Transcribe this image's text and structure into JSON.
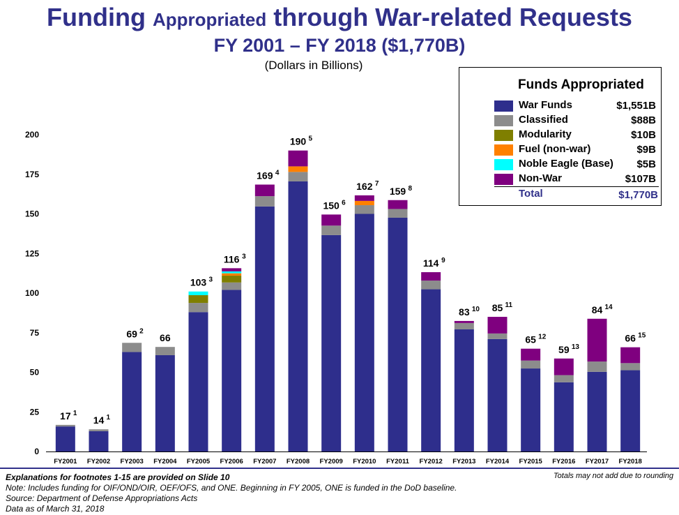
{
  "title": {
    "line1_a": "Funding",
    "line1_b": "Appropriated",
    "line1_c": "through War-related Requests",
    "line2": "FY 2001 – FY 2018 ($1,770B)",
    "units": "(Dollars in Billions)"
  },
  "legend": {
    "title": "Funds Appropriated",
    "items": [
      {
        "label": "War Funds",
        "value": "$1,551B",
        "color": "#2e2e8c"
      },
      {
        "label": "Classified",
        "value": "$88B",
        "color": "#8c8c8c"
      },
      {
        "label": "Modularity",
        "value": "$10B",
        "color": "#7f7f00"
      },
      {
        "label": "Fuel (non-war)",
        "value": "$9B",
        "color": "#ff8000"
      },
      {
        "label": "Noble Eagle (Base)",
        "value": "$5B",
        "color": "#00ffff"
      },
      {
        "label": "Non-War",
        "value": "$107B",
        "color": "#7f007f"
      }
    ],
    "total_label": "Total",
    "total_value": "$1,770B"
  },
  "chart_data": {
    "type": "bar",
    "stacked": true,
    "ylim": [
      0,
      200
    ],
    "yticks": [
      0,
      25,
      50,
      75,
      100,
      125,
      150,
      175,
      200
    ],
    "categories": [
      "FY2001",
      "FY2002",
      "FY2003",
      "FY2004",
      "FY2005",
      "FY2006",
      "FY2007",
      "FY2008",
      "FY2009",
      "FY2010",
      "FY2011",
      "FY2012",
      "FY2013",
      "FY2014",
      "FY2015",
      "FY2016",
      "FY2017",
      "FY2018"
    ],
    "totals": [
      "17",
      "14",
      "69",
      "66",
      "103",
      "116",
      "169",
      "190",
      "150",
      "162",
      "159",
      "114",
      "83",
      "85",
      "65",
      "59",
      "84",
      "66"
    ],
    "footnotes": [
      "1",
      "1",
      "2",
      "",
      "3",
      "3",
      "4",
      "5",
      "6",
      "7",
      "8",
      "9",
      "10",
      "11",
      "12",
      "13",
      "14",
      "15"
    ],
    "series": [
      {
        "name": "War Funds",
        "color": "#2e2e8c",
        "values": [
          15.8,
          12.8,
          62.8,
          60.8,
          88.0,
          102.0,
          154.7,
          170.5,
          136.6,
          150.0,
          147.6,
          102.4,
          77.1,
          71.0,
          52.4,
          43.7,
          50.3,
          51.3
        ]
      },
      {
        "name": "Classified",
        "color": "#8c8c8c",
        "values": [
          1.0,
          1.2,
          5.8,
          5.2,
          5.8,
          4.7,
          6.5,
          6.0,
          6.0,
          5.5,
          5.5,
          5.5,
          4.0,
          3.5,
          5.0,
          4.5,
          6.5,
          4.5
        ]
      },
      {
        "name": "Modularity",
        "color": "#7f7f00",
        "values": [
          0,
          0,
          0,
          0,
          4.9,
          4.3,
          0,
          0,
          0,
          0,
          0,
          0,
          0,
          0,
          0,
          0,
          0,
          0
        ]
      },
      {
        "name": "Fuel (non-war)",
        "color": "#ff8000",
        "values": [
          0,
          0,
          0,
          0,
          0,
          1.5,
          0,
          3.5,
          0,
          2.7,
          0,
          0,
          0,
          0,
          0,
          0,
          0,
          0
        ]
      },
      {
        "name": "Noble Eagle (Base)",
        "color": "#00ffff",
        "values": [
          0,
          0,
          0,
          0,
          2.3,
          1.2,
          0,
          0,
          0,
          0,
          0,
          0,
          0,
          0,
          0,
          0,
          0,
          0
        ]
      },
      {
        "name": "Non-War",
        "color": "#7f007f",
        "values": [
          0,
          0,
          0,
          0,
          0,
          2.0,
          7.3,
          10.0,
          7.0,
          3.5,
          5.6,
          5.3,
          1.3,
          10.5,
          7.5,
          10.5,
          27.0,
          10.0
        ]
      }
    ]
  },
  "notes": {
    "footnotes_line": "Explanations for footnotes 1-15 are provided on Slide 10",
    "note": "Note:  Includes funding for OIF/OND/OIR, OEF/OFS, and ONE.  Beginning in FY 2005, ONE is funded in the DoD baseline.",
    "source": "Source:  Department of Defense Appropriations Acts",
    "date": "Data as of March 31, 2018",
    "rounding": "Totals may not add due to rounding"
  }
}
